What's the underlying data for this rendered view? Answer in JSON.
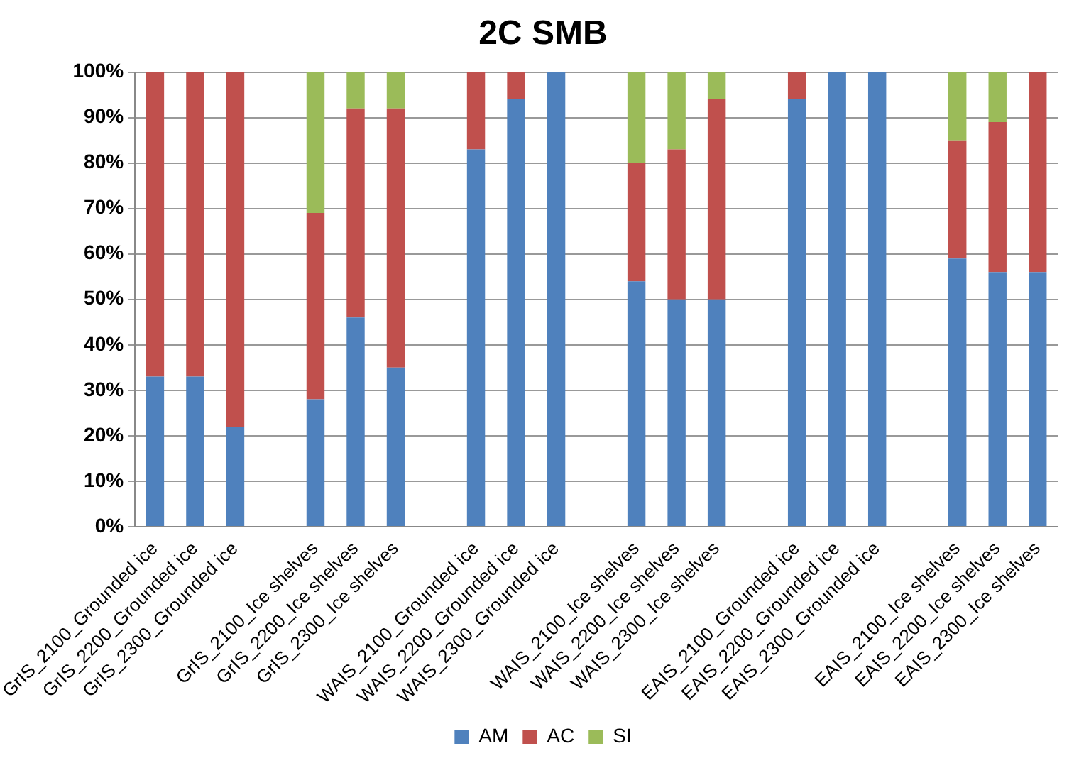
{
  "chart_data": {
    "type": "bar",
    "title": "2C SMB",
    "stacked": true,
    "categories": [
      "GrIS_2100_Grounded ice",
      "GrIS_2200_Grounded ice",
      "GrIS_2300_Grounded ice",
      null,
      "GrIS_2100_Ice shelves",
      "GrIS_2200_Ice shelves",
      "GrIS_2300_Ice shelves",
      null,
      "WAIS_2100_Grounded ice",
      "WAIS_2200_Grounded ice",
      "WAIS_2300_Grounded ice",
      null,
      "WAIS_2100_Ice shelves",
      "WAIS_2200_Ice shelves",
      "WAIS_2300_Ice shelves",
      null,
      "EAIS_2100_Grounded ice",
      "EAIS_2200_Grounded ice",
      "EAIS_2300_Grounded ice",
      null,
      "EAIS_2100_Ice shelves",
      "EAIS_2200_Ice shelves",
      "EAIS_2300_Ice shelves"
    ],
    "series": [
      {
        "name": "AM",
        "color": "#4f81bd",
        "values": [
          33,
          33,
          22,
          null,
          28,
          46,
          35,
          null,
          83,
          94,
          100,
          null,
          54,
          50,
          50,
          null,
          94,
          100,
          100,
          null,
          59,
          56,
          56
        ]
      },
      {
        "name": "AC",
        "color": "#c0504d",
        "values": [
          67,
          67,
          78,
          null,
          41,
          46,
          57,
          null,
          17,
          6,
          0,
          null,
          26,
          33,
          44,
          null,
          6,
          0,
          0,
          null,
          26,
          33,
          44
        ]
      },
      {
        "name": "SI",
        "color": "#9bbb59",
        "values": [
          0,
          0,
          0,
          null,
          31,
          8,
          8,
          null,
          0,
          0,
          0,
          null,
          20,
          17,
          6,
          null,
          0,
          0,
          0,
          null,
          15,
          11,
          0
        ]
      }
    ],
    "ylim": [
      0,
      100
    ],
    "yticks": [
      {
        "value": 0,
        "label": "0%"
      },
      {
        "value": 10,
        "label": "10%"
      },
      {
        "value": 20,
        "label": "20%"
      },
      {
        "value": 30,
        "label": "30%"
      },
      {
        "value": 40,
        "label": "40%"
      },
      {
        "value": 50,
        "label": "50%"
      },
      {
        "value": 60,
        "label": "60%"
      },
      {
        "value": 70,
        "label": "70%"
      },
      {
        "value": 80,
        "label": "80%"
      },
      {
        "value": 90,
        "label": "90%"
      },
      {
        "value": 100,
        "label": "100%"
      }
    ],
    "grid": "y",
    "legend": "bottom"
  }
}
